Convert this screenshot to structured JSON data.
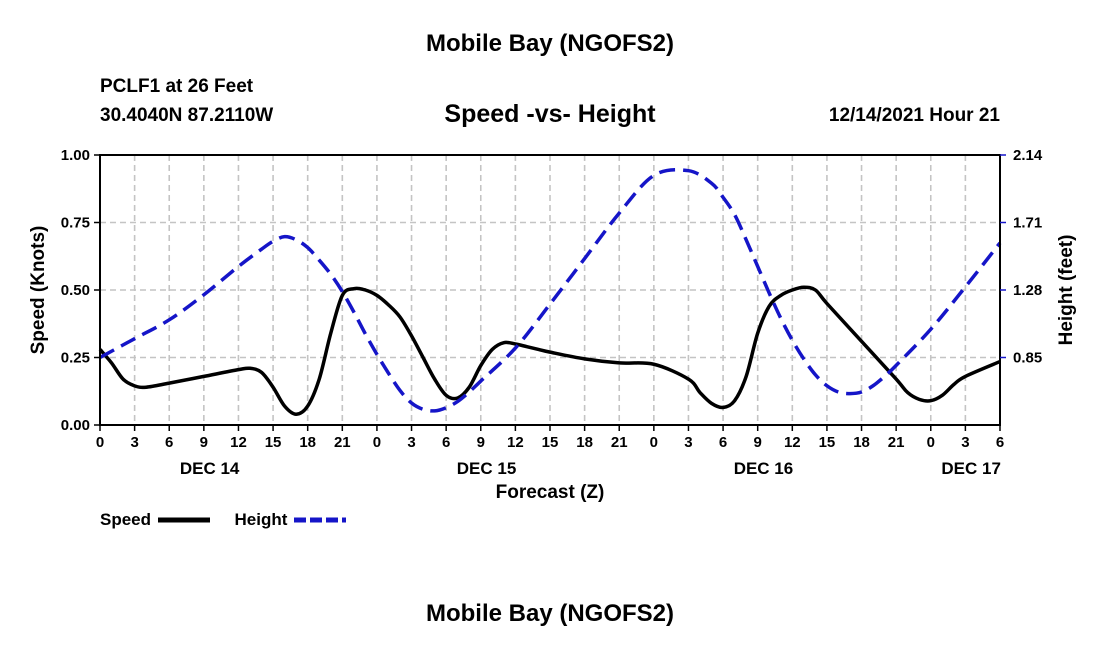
{
  "page": {
    "title_top": "Mobile Bay (NGOFS2)",
    "title_bottom": "Mobile Bay (NGOFS2)",
    "station": "PCLF1 at 26 Feet",
    "coords": "30.4040N  87.2110W",
    "subtitle": "Speed -vs- Height",
    "timestamp": "12/14/2021 Hour 21"
  },
  "legend": {
    "speed_label": "Speed",
    "height_label": "Height"
  },
  "chart_data": {
    "type": "line",
    "title": "Speed -vs- Height",
    "xlabel": "Forecast (Z)",
    "ylabel": "Speed (Knots)",
    "y2label": "Height (feet)",
    "xlim": [
      0,
      78
    ],
    "ylim": [
      0,
      1.0
    ],
    "y2lim": [
      0.42,
      2.14
    ],
    "grid": true,
    "legend_position": "bottom-left",
    "x_ticks": [
      0,
      3,
      6,
      9,
      12,
      15,
      18,
      21,
      24,
      27,
      30,
      33,
      36,
      39,
      42,
      45,
      48,
      51,
      54,
      57,
      60,
      63,
      66,
      69,
      72,
      75,
      78
    ],
    "x_tick_labels": [
      "0",
      "3",
      "6",
      "9",
      "12",
      "15",
      "18",
      "21",
      "0",
      "3",
      "6",
      "9",
      "12",
      "15",
      "18",
      "21",
      "0",
      "3",
      "6",
      "9",
      "12",
      "15",
      "18",
      "21",
      "0",
      "3",
      "6"
    ],
    "date_labels": [
      {
        "x": 9.5,
        "label": "DEC 14"
      },
      {
        "x": 33.5,
        "label": "DEC 15"
      },
      {
        "x": 57.5,
        "label": "DEC 16"
      },
      {
        "x": 75.5,
        "label": "DEC 17"
      }
    ],
    "y_ticks": [
      0.0,
      0.25,
      0.5,
      0.75,
      1.0
    ],
    "y_tick_labels": [
      "0.00",
      "0.25",
      "0.50",
      "0.75",
      "1.00"
    ],
    "y2_ticks": [
      0.85,
      1.28,
      1.71,
      2.14
    ],
    "y2_tick_labels": [
      "0.85",
      "1.28",
      "1.71",
      "2.14"
    ],
    "series": [
      {
        "name": "Speed",
        "axis": "left",
        "color": "#000000",
        "dash": "solid",
        "x": [
          0,
          1,
          2,
          3,
          4,
          6,
          9,
          12,
          13,
          14,
          15,
          16,
          17,
          18,
          19,
          20,
          21,
          22,
          23,
          24,
          25,
          26,
          27,
          28,
          29,
          30,
          31,
          32,
          33,
          34,
          35,
          36,
          37,
          38,
          39,
          42,
          45,
          48,
          51,
          52,
          53,
          54,
          55,
          56,
          57,
          58,
          59,
          60,
          61,
          62,
          63,
          66,
          69,
          70,
          71,
          72,
          73,
          74,
          75,
          78
        ],
        "values": [
          0.28,
          0.23,
          0.17,
          0.145,
          0.14,
          0.155,
          0.18,
          0.205,
          0.21,
          0.195,
          0.14,
          0.07,
          0.04,
          0.07,
          0.17,
          0.34,
          0.48,
          0.505,
          0.5,
          0.48,
          0.445,
          0.4,
          0.33,
          0.25,
          0.17,
          0.11,
          0.1,
          0.14,
          0.22,
          0.28,
          0.305,
          0.3,
          0.29,
          0.28,
          0.27,
          0.245,
          0.23,
          0.225,
          0.17,
          0.12,
          0.08,
          0.065,
          0.09,
          0.18,
          0.34,
          0.44,
          0.48,
          0.5,
          0.51,
          0.5,
          0.45,
          0.31,
          0.17,
          0.12,
          0.095,
          0.09,
          0.11,
          0.15,
          0.18,
          0.235
        ]
      },
      {
        "name": "Height",
        "axis": "right",
        "color": "#1515c8",
        "dash": "dashed",
        "x": [
          0,
          3,
          6,
          9,
          12,
          14,
          15,
          16,
          17,
          18,
          19,
          20,
          21,
          22,
          23,
          24,
          25,
          26,
          27,
          28,
          29,
          30,
          31,
          32,
          33,
          36,
          39,
          42,
          45,
          48,
          51,
          53,
          54,
          55,
          56,
          57,
          58,
          59,
          60,
          61,
          62,
          63,
          64,
          65,
          66,
          67,
          68,
          69,
          72,
          75,
          78
        ],
        "values": [
          0.85,
          0.97,
          1.09,
          1.25,
          1.43,
          1.54,
          1.59,
          1.62,
          1.6,
          1.55,
          1.47,
          1.38,
          1.27,
          1.14,
          1.0,
          0.87,
          0.75,
          0.64,
          0.56,
          0.52,
          0.51,
          0.53,
          0.57,
          0.63,
          0.7,
          0.91,
          1.19,
          1.48,
          1.77,
          2.01,
          2.04,
          1.96,
          1.87,
          1.76,
          1.6,
          1.43,
          1.26,
          1.1,
          0.96,
          0.84,
          0.74,
          0.67,
          0.63,
          0.62,
          0.63,
          0.67,
          0.73,
          0.8,
          1.03,
          1.3,
          1.58
        ]
      }
    ]
  }
}
